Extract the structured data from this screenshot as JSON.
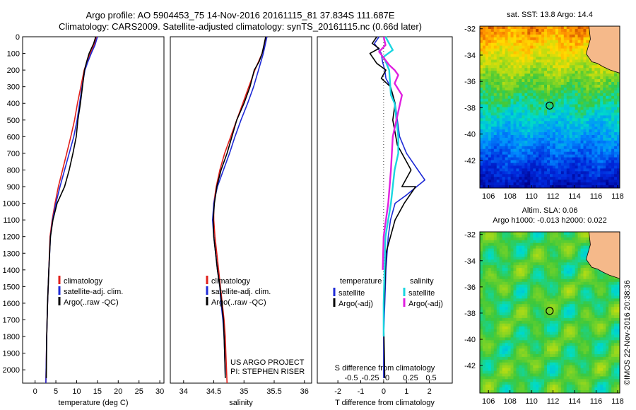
{
  "header": {
    "title_line1": "Argo profile: AO 5904453_75 14-Nov-2016 20161115_81 37.834S 111.687E",
    "title_line2": "Climatology: CARS2009. Satellite-adjusted climatology: synTS_20161115.nc (0.66d later)"
  },
  "footer": {
    "project": "US ARGO PROJECT",
    "pi": "PI: STEPHEN RISER",
    "credit": "©IMOS 22-Nov-2016 20:38:36"
  },
  "depth_ticks": [
    "0",
    "100",
    "200",
    "300",
    "400",
    "500",
    "600",
    "700",
    "800",
    "900",
    "1000",
    "1100",
    "1200",
    "1300",
    "1400",
    "1500",
    "1600",
    "1700",
    "1800",
    "1900",
    "2000"
  ],
  "colors": {
    "climatology": "#e0201b",
    "satellite": "#1f2bd6",
    "argo": "#000000",
    "sal_satellite": "#19d6e0",
    "sal_argo": "#e020e0",
    "land": "#f5b98a"
  },
  "chart_data": [
    {
      "type": "line",
      "panel": "temperature",
      "xlabel": "temperature (deg C)",
      "x_ticks": [
        "0",
        "5",
        "10",
        "15",
        "20",
        "25",
        "30"
      ],
      "xlim": [
        -3,
        31
      ],
      "ylim": [
        2080,
        0
      ],
      "legend_placement": "lower-middle",
      "legend": [
        "climatology",
        "satellite-adj. clim.",
        "Argo(..raw -QC)"
      ],
      "series": [
        {
          "name": "climatology",
          "color_key": "climatology",
          "points": [
            [
              14.8,
              0
            ],
            [
              14.2,
              50
            ],
            [
              13.3,
              100
            ],
            [
              12.5,
              150
            ],
            [
              11.8,
              200
            ],
            [
              11.0,
              300
            ],
            [
              10.2,
              400
            ],
            [
              9.5,
              500
            ],
            [
              8.6,
              600
            ],
            [
              7.6,
              700
            ],
            [
              6.6,
              800
            ],
            [
              5.6,
              900
            ],
            [
              4.8,
              1000
            ],
            [
              4.1,
              1100
            ],
            [
              3.6,
              1200
            ],
            [
              3.3,
              1400
            ],
            [
              3.0,
              1600
            ],
            [
              2.8,
              1800
            ],
            [
              2.6,
              2080
            ]
          ]
        },
        {
          "name": "satellite-adj. clim.",
          "color_key": "satellite",
          "points": [
            [
              15.0,
              0
            ],
            [
              14.4,
              50
            ],
            [
              13.5,
              100
            ],
            [
              12.7,
              150
            ],
            [
              12.0,
              200
            ],
            [
              11.3,
              300
            ],
            [
              10.7,
              400
            ],
            [
              10.1,
              500
            ],
            [
              9.3,
              600
            ],
            [
              8.2,
              700
            ],
            [
              7.1,
              800
            ],
            [
              6.0,
              900
            ],
            [
              5.0,
              1000
            ],
            [
              4.2,
              1100
            ],
            [
              3.7,
              1200
            ],
            [
              3.3,
              1400
            ],
            [
              3.0,
              1600
            ],
            [
              2.8,
              1800
            ],
            [
              2.6,
              2080
            ]
          ]
        },
        {
          "name": "Argo(..raw -QC)",
          "color_key": "argo",
          "points": [
            [
              14.6,
              0
            ],
            [
              14.1,
              40
            ],
            [
              13.0,
              100
            ],
            [
              12.4,
              150
            ],
            [
              11.9,
              200
            ],
            [
              11.4,
              300
            ],
            [
              10.9,
              400
            ],
            [
              10.3,
              500
            ],
            [
              9.9,
              600
            ],
            [
              9.1,
              700
            ],
            [
              8.2,
              800
            ],
            [
              7.1,
              900
            ],
            [
              5.3,
              1000
            ],
            [
              4.3,
              1100
            ],
            [
              3.7,
              1200
            ],
            [
              3.3,
              1400
            ],
            [
              3.0,
              1600
            ],
            [
              2.8,
              1800
            ],
            [
              2.7,
              2050
            ]
          ]
        }
      ]
    },
    {
      "type": "line",
      "panel": "salinity",
      "xlabel": "salinity",
      "x_ticks": [
        "34",
        "34.5",
        "35",
        "35.5",
        "36"
      ],
      "xlim": [
        33.78,
        36.12
      ],
      "ylim": [
        2080,
        0
      ],
      "legend_placement": "lower-middle",
      "legend": [
        "climatology",
        "satellite-adj. clim.",
        "Argo(..raw -QC)"
      ],
      "series": [
        {
          "name": "climatology",
          "color_key": "climatology",
          "points": [
            [
              35.38,
              0
            ],
            [
              35.3,
              100
            ],
            [
              35.18,
              200
            ],
            [
              35.08,
              300
            ],
            [
              34.98,
              400
            ],
            [
              34.88,
              500
            ],
            [
              34.78,
              600
            ],
            [
              34.68,
              700
            ],
            [
              34.6,
              800
            ],
            [
              34.54,
              900
            ],
            [
              34.5,
              1000
            ],
            [
              34.5,
              1100
            ],
            [
              34.52,
              1200
            ],
            [
              34.55,
              1300
            ],
            [
              34.58,
              1400
            ],
            [
              34.61,
              1500
            ],
            [
              34.64,
              1600
            ],
            [
              34.67,
              1700
            ],
            [
              34.69,
              1800
            ],
            [
              34.7,
              1900
            ],
            [
              34.72,
              2080
            ]
          ]
        },
        {
          "name": "satellite-adj. clim.",
          "color_key": "satellite",
          "points": [
            [
              35.38,
              0
            ],
            [
              35.32,
              100
            ],
            [
              35.24,
              200
            ],
            [
              35.16,
              300
            ],
            [
              35.06,
              400
            ],
            [
              34.95,
              500
            ],
            [
              34.85,
              600
            ],
            [
              34.76,
              700
            ],
            [
              34.66,
              800
            ],
            [
              34.56,
              900
            ],
            [
              34.5,
              1000
            ],
            [
              34.48,
              1100
            ],
            [
              34.5,
              1200
            ],
            [
              34.53,
              1300
            ],
            [
              34.56,
              1400
            ],
            [
              34.6,
              1500
            ],
            [
              34.62,
              1600
            ],
            [
              34.65,
              1700
            ],
            [
              34.67,
              1800
            ],
            [
              34.68,
              1900
            ],
            [
              34.69,
              2030
            ]
          ]
        },
        {
          "name": "Argo(..raw -QC)",
          "color_key": "argo",
          "points": [
            [
              35.36,
              0
            ],
            [
              35.33,
              50
            ],
            [
              35.3,
              100
            ],
            [
              35.25,
              150
            ],
            [
              35.17,
              200
            ],
            [
              35.1,
              300
            ],
            [
              35.0,
              400
            ],
            [
              34.88,
              500
            ],
            [
              34.8,
              600
            ],
            [
              34.72,
              700
            ],
            [
              34.62,
              800
            ],
            [
              34.55,
              900
            ],
            [
              34.51,
              1000
            ],
            [
              34.49,
              1100
            ],
            [
              34.5,
              1200
            ],
            [
              34.53,
              1300
            ],
            [
              34.56,
              1400
            ],
            [
              34.6,
              1500
            ],
            [
              34.63,
              1600
            ],
            [
              34.66,
              1700
            ],
            [
              34.67,
              1800
            ],
            [
              34.68,
              1900
            ],
            [
              34.69,
              2050
            ]
          ]
        }
      ]
    },
    {
      "type": "line",
      "panel": "difference",
      "xlabel": "T difference from climatology",
      "xlabel_top": "S difference from climatology",
      "x_ticks": [
        "-2",
        "-1",
        "0",
        "1",
        "2"
      ],
      "x_ticks_secondary": [
        "-0.5",
        "-0.25",
        "0",
        "0.25",
        "0.5"
      ],
      "xlim": [
        -2.9,
        3.0
      ],
      "ylim": [
        2080,
        0
      ],
      "zero_line": true,
      "legend_placement": "lower-middle",
      "legend_groups": [
        {
          "title": "temperature",
          "entries": [
            "satellite",
            "Argo(-adj)"
          ]
        },
        {
          "title": "salinity",
          "entries": [
            "satellite",
            "Argo(-adj)"
          ]
        }
      ],
      "series": [
        {
          "name": "satellite",
          "group": "temperature",
          "color_key": "satellite",
          "points": [
            [
              -0.2,
              0
            ],
            [
              -0.4,
              40
            ],
            [
              -0.1,
              100
            ],
            [
              -0.05,
              150
            ],
            [
              0.05,
              200
            ],
            [
              0.1,
              250
            ],
            [
              0.3,
              300
            ],
            [
              0.5,
              400
            ],
            [
              0.6,
              500
            ],
            [
              0.7,
              600
            ],
            [
              1.0,
              700
            ],
            [
              1.5,
              800
            ],
            [
              1.8,
              860
            ],
            [
              1.0,
              950
            ],
            [
              0.5,
              1000
            ],
            [
              0.3,
              1100
            ],
            [
              0.2,
              1200
            ],
            [
              0.1,
              1400
            ],
            [
              0.05,
              1600
            ],
            [
              0.0,
              1800
            ],
            [
              0.0,
              2050
            ]
          ]
        },
        {
          "name": "Argo(-adj)",
          "group": "temperature",
          "color_key": "argo",
          "points": [
            [
              -0.3,
              0
            ],
            [
              -0.5,
              40
            ],
            [
              -0.2,
              70
            ],
            [
              -0.6,
              100
            ],
            [
              -0.3,
              160
            ],
            [
              0.1,
              200
            ],
            [
              -0.1,
              250
            ],
            [
              0.3,
              300
            ],
            [
              0.5,
              400
            ],
            [
              0.4,
              500
            ],
            [
              0.6,
              650
            ],
            [
              1.2,
              800
            ],
            [
              0.8,
              900
            ],
            [
              1.4,
              900
            ],
            [
              0.9,
              1000
            ],
            [
              0.5,
              1100
            ],
            [
              0.3,
              1200
            ],
            [
              0.1,
              1300
            ],
            [
              0.05,
              1500
            ],
            [
              0.0,
              1700
            ],
            [
              0.05,
              2050
            ]
          ]
        },
        {
          "name": "satellite",
          "group": "salinity",
          "color_key": "sal_satellite",
          "points": [
            [
              0.02,
              0
            ],
            [
              0.1,
              80
            ],
            [
              0.0,
              120
            ],
            [
              0.06,
              200
            ],
            [
              0.08,
              350
            ],
            [
              0.12,
              400
            ],
            [
              0.16,
              600
            ],
            [
              0.16,
              700
            ],
            [
              0.12,
              800
            ],
            [
              0.08,
              1000
            ],
            [
              0.02,
              1200
            ],
            [
              0.0,
              1600
            ],
            [
              0.0,
              1800
            ]
          ]
        },
        {
          "name": "Argo(-adj)",
          "group": "salinity",
          "color_key": "sal_argo",
          "points": [
            [
              0.0,
              0
            ],
            [
              0.02,
              50
            ],
            [
              -0.05,
              90
            ],
            [
              0.06,
              170
            ],
            [
              0.12,
              200
            ],
            [
              0.16,
              230
            ],
            [
              0.12,
              280
            ],
            [
              0.2,
              350
            ],
            [
              0.1,
              600
            ],
            [
              0.08,
              800
            ],
            [
              0.05,
              1000
            ],
            [
              0.0,
              1200
            ],
            [
              -0.01,
              1400
            ]
          ]
        }
      ]
    },
    {
      "type": "heatmap",
      "panel": "sst_map",
      "title": "sat. SST: 13.8  Argo: 14.4",
      "x_ticks": [
        "106",
        "108",
        "110",
        "112",
        "114",
        "116",
        "118"
      ],
      "y_ticks": [
        "-32",
        "-34",
        "-36",
        "-38",
        "-40",
        "-42"
      ],
      "xlim": [
        105.2,
        118.2
      ],
      "ylim": [
        -44.1,
        -31.8
      ],
      "argo_position": [
        111.687,
        -37.834
      ]
    },
    {
      "type": "heatmap",
      "panel": "sla_map",
      "title_line1": "Altim. SLA: 0.06",
      "title_line2": "Argo h1000: -0.013 h2000: 0.022",
      "x_ticks": [
        "106",
        "108",
        "110",
        "112",
        "114",
        "116",
        "118"
      ],
      "y_ticks": [
        "-32",
        "-34",
        "-36",
        "-38",
        "-40",
        "-42"
      ],
      "xlim": [
        105.2,
        118.2
      ],
      "ylim": [
        -44.1,
        -31.8
      ],
      "argo_position": [
        111.687,
        -37.834
      ]
    }
  ]
}
